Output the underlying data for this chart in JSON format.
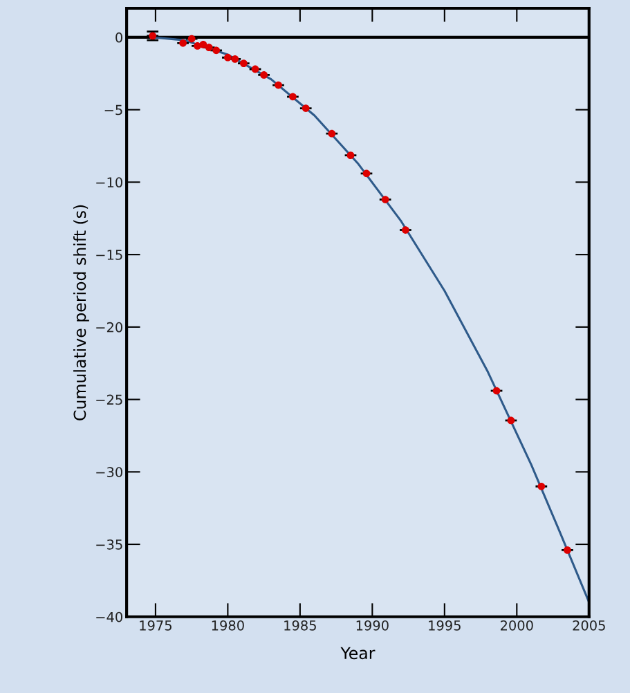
{
  "chart_data": {
    "type": "scatter",
    "xlabel": "Year",
    "ylabel": "Cumulative period shift (s)",
    "xlim": [
      1973,
      2005
    ],
    "xticks": [
      1975,
      1980,
      1985,
      1990,
      1995,
      2000,
      2005
    ],
    "ylim": [
      -40,
      2
    ],
    "yticks": [
      0,
      {
        "value": -5,
        "label": "−5"
      },
      {
        "value": -10,
        "label": "−10"
      },
      {
        "value": -15,
        "label": "−15"
      },
      {
        "value": -20,
        "label": "−20"
      },
      {
        "value": -25,
        "label": "−25"
      },
      {
        "value": -30,
        "label": "−30"
      },
      {
        "value": -35,
        "label": "−35"
      },
      {
        "value": -40,
        "label": "−40"
      }
    ],
    "grid": false,
    "legend": false,
    "ref_lines": [
      {
        "axis": "y",
        "value": 0,
        "color": "#000000"
      }
    ],
    "series": [
      {
        "type": "line",
        "color": "#2e5a8a",
        "marker": "none",
        "line_style": "solid",
        "x": [
          1974.8,
          1977,
          1980,
          1983,
          1986,
          1989,
          1992,
          1995,
          1998,
          2001,
          2003,
          2005
        ],
        "values": [
          0.0,
          -0.2,
          -1.2,
          -2.9,
          -5.4,
          -8.7,
          -12.7,
          -17.5,
          -23.1,
          -29.5,
          -34.2,
          -39.0
        ]
      },
      {
        "type": "scatter",
        "color": "#dd0000",
        "marker": "circle",
        "x": [
          1974.8,
          1976.9,
          1977.5,
          1977.9,
          1978.3,
          1978.7,
          1979.2,
          1980.0,
          1980.5,
          1981.1,
          1981.9,
          1982.5,
          1983.5,
          1984.5,
          1985.4,
          1987.2,
          1988.5,
          1989.6,
          1990.9,
          1992.3,
          1998.6,
          1999.6,
          2001.7,
          2003.5
        ],
        "values": [
          0.1,
          -0.4,
          -0.1,
          -0.6,
          -0.5,
          -0.7,
          -0.9,
          -1.4,
          -1.5,
          -1.8,
          -2.2,
          -2.6,
          -3.3,
          -4.1,
          -4.9,
          -6.65,
          -8.15,
          -9.4,
          -11.2,
          -13.3,
          -24.4,
          -26.45,
          -31.0,
          -35.4
        ],
        "errors": [
          0.3,
          null,
          null,
          null,
          null,
          null,
          null,
          null,
          null,
          null,
          null,
          null,
          null,
          null,
          null,
          null,
          null,
          null,
          null,
          null,
          null,
          null,
          null,
          null
        ],
        "xerrors": [
          0.4,
          0.4,
          0.4,
          0.4,
          null,
          0.4,
          0.4,
          0.4,
          0.4,
          0.4,
          0.4,
          0.4,
          0.4,
          0.4,
          0.4,
          0.4,
          0.4,
          0.4,
          0.4,
          0.4,
          0.4,
          0.4,
          0.4,
          0.4
        ]
      }
    ]
  }
}
